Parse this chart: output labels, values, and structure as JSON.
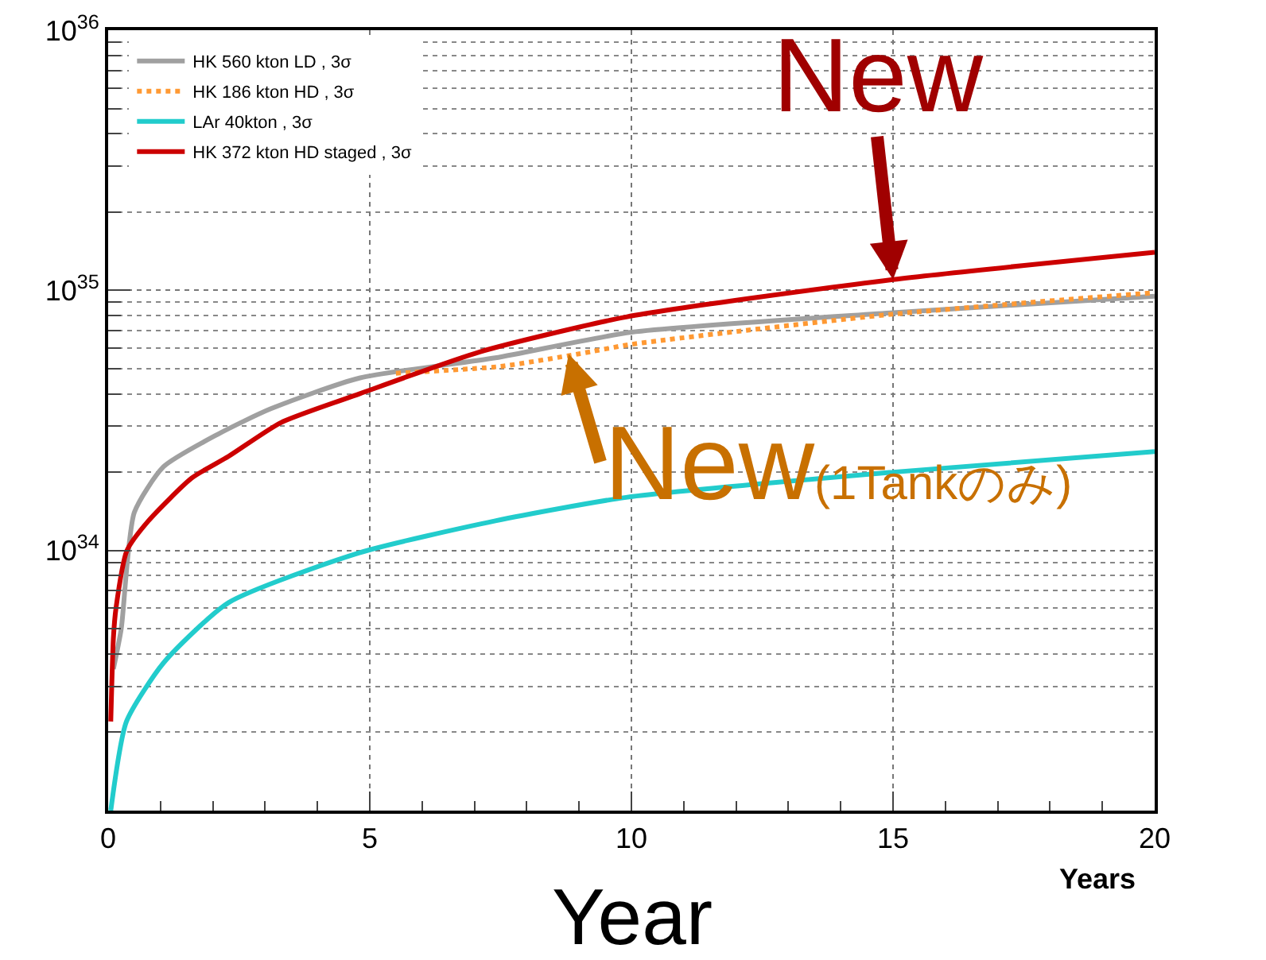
{
  "chart_data": {
    "type": "line",
    "xlabel": "Years",
    "xlim": [
      0,
      20
    ],
    "xticks": [
      0,
      5,
      10,
      15,
      20
    ],
    "ylim": [
      1e+33,
      1e+36
    ],
    "yticks": [
      {
        "value": 1e+34,
        "label": "10$^{34}$"
      },
      {
        "value": 1e+35,
        "label": "10$^{35}$"
      },
      {
        "value": 1e+36,
        "label": "10$^{36}$"
      }
    ],
    "log": true,
    "grid": true,
    "legend": "top left",
    "marker": "none",
    "line_style": "solid",
    "series": [
      {
        "name": "HK 560 kton LD , 3σ",
        "color": "#a0a0a0",
        "x": [
          0.1,
          0.25,
          0.5,
          1.06,
          2.1,
          3.1,
          4.8,
          7.4,
          10,
          15,
          20
        ],
        "values": [
          3.5e+33,
          5e+33,
          1.4e+34,
          2.1e+34,
          2.8e+34,
          3.5e+34,
          4.6e+34,
          5.5e+34,
          6.9e+34,
          8.2e+34,
          9.5e+34
        ]
      },
      {
        "name": "HK 186 kton HD , 3σ",
        "color": "#ff9933",
        "line_style": "dotted",
        "x": [
          5.5,
          7.5,
          9,
          10,
          15,
          20
        ],
        "values": [
          4.8e+34,
          5.1e+34,
          5.7e+34,
          6.2e+34,
          8.1e+34,
          9.8e+34
        ]
      },
      {
        "name": "LAr 40kton , 3σ",
        "color": "#22cccc",
        "x": [
          0.05,
          0.35,
          1.06,
          2.3,
          4.8,
          7.4,
          9.9,
          15,
          20
        ],
        "values": [
          1e+33,
          2.2e+33,
          3.7e+33,
          6.3e+33,
          9.8e+33,
          1.3e+34,
          1.6e+34,
          2e+34,
          2.4e+34
        ]
      },
      {
        "name": "HK 372 kton HD staged , 3σ",
        "color": "#cc0000",
        "x": [
          0.05,
          0.1,
          0.15,
          0.36,
          0.77,
          1.6,
          2.3,
          3.3,
          4.8,
          7.1,
          9.9,
          15,
          20
        ],
        "values": [
          2.2e+33,
          4.6e+33,
          6e+33,
          1e+34,
          1.3e+34,
          1.9e+34,
          2.3e+34,
          3.1e+34,
          4e+34,
          5.8e+34,
          7.9e+34,
          1.1e+35,
          1.4e+35
        ]
      }
    ],
    "annotations": [
      {
        "text": "New",
        "x": 15,
        "y": 1.1e+35
      },
      {
        "text": "New(1Tankのみ)",
        "x": 8.8,
        "y": 5.7e+34
      },
      "Year"
    ]
  }
}
